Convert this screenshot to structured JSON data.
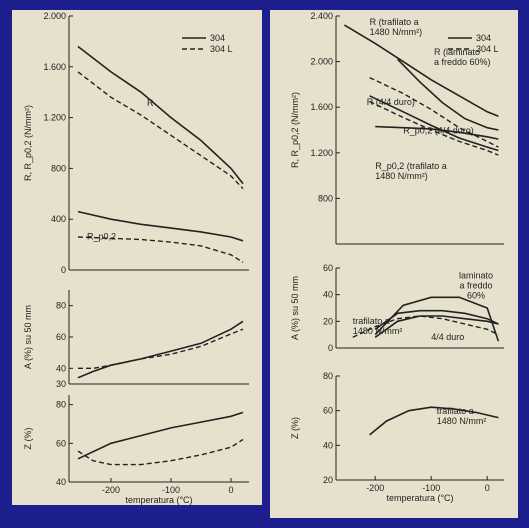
{
  "chart_data": [
    {
      "id": "left-top",
      "type": "line",
      "ylabel": "R, R_p0,2 (N/mm²)",
      "xlim": [
        -270,
        30
      ],
      "ylim": [
        0,
        2000
      ],
      "yticks": [
        0,
        400,
        800,
        1200,
        1600,
        2000
      ],
      "ytick_labels": [
        "0",
        "400",
        "800",
        "1.200",
        "1.600",
        "2.000"
      ],
      "legend": [
        "304",
        "304 L"
      ],
      "annotations": [
        "R",
        "R_p0,2"
      ],
      "series": [
        {
          "name": "304",
          "label": "R",
          "style": "solid",
          "x": [
            -255,
            -200,
            -150,
            -100,
            -50,
            0,
            20
          ],
          "y": [
            1760,
            1560,
            1400,
            1200,
            1020,
            800,
            680
          ]
        },
        {
          "name": "304 L",
          "label": "R",
          "style": "dash",
          "x": [
            -255,
            -200,
            -150,
            -100,
            -50,
            0,
            20
          ],
          "y": [
            1560,
            1360,
            1220,
            1060,
            900,
            740,
            640
          ]
        },
        {
          "name": "304",
          "label": "R_p0,2",
          "style": "solid",
          "x": [
            -255,
            -200,
            -150,
            -100,
            -50,
            0,
            20
          ],
          "y": [
            460,
            400,
            360,
            330,
            300,
            260,
            230
          ]
        },
        {
          "name": "304 L",
          "label": "R_p0,2",
          "style": "dash",
          "x": [
            -255,
            -200,
            -150,
            -100,
            -50,
            0,
            20
          ],
          "y": [
            260,
            250,
            240,
            220,
            190,
            120,
            60
          ]
        }
      ]
    },
    {
      "id": "left-mid",
      "type": "line",
      "ylabel": "A (%) su 50 mm",
      "xlim": [
        -270,
        30
      ],
      "ylim": [
        30,
        90
      ],
      "yticks": [
        30,
        40,
        60,
        80
      ],
      "ytick_labels": [
        "30",
        "40",
        "60",
        "80"
      ],
      "series": [
        {
          "name": "304",
          "style": "solid",
          "x": [
            -255,
            -230,
            -200,
            -150,
            -100,
            -50,
            0,
            20
          ],
          "y": [
            34,
            38,
            42,
            46,
            51,
            56,
            65,
            70
          ]
        },
        {
          "name": "304 L",
          "style": "dash",
          "x": [
            -255,
            -230,
            -200,
            -150,
            -100,
            -50,
            0,
            20
          ],
          "y": [
            40,
            40,
            42,
            46,
            49,
            54,
            62,
            65
          ]
        }
      ]
    },
    {
      "id": "left-bot",
      "type": "line",
      "ylabel": "Z (%)",
      "xlabel": "temperatura (°C)",
      "xlim": [
        -270,
        30
      ],
      "ylim": [
        40,
        85
      ],
      "xticks": [
        -200,
        -100,
        0
      ],
      "xtick_labels": [
        "-200",
        "-100",
        "0"
      ],
      "yticks": [
        40,
        60,
        80
      ],
      "ytick_labels": [
        "40",
        "60",
        "80"
      ],
      "series": [
        {
          "name": "304",
          "style": "solid",
          "x": [
            -255,
            -200,
            -150,
            -100,
            -50,
            0,
            20
          ],
          "y": [
            52,
            60,
            64,
            68,
            71,
            74,
            76
          ]
        },
        {
          "name": "304 L",
          "style": "dash",
          "x": [
            -255,
            -230,
            -200,
            -150,
            -100,
            -50,
            0,
            20
          ],
          "y": [
            56,
            51,
            49,
            49,
            51,
            54,
            58,
            62
          ]
        }
      ]
    },
    {
      "id": "right-top",
      "type": "line",
      "ylabel": "R, R_p0,2 (N/mm²)",
      "xlim": [
        -270,
        30
      ],
      "ylim": [
        400,
        2400
      ],
      "yticks": [
        800,
        1200,
        1600,
        2000,
        2400
      ],
      "ytick_labels": [
        "800",
        "1.200",
        "1.600",
        "2.000",
        "2.400"
      ],
      "legend": [
        "304",
        "304 L"
      ],
      "annotations": [
        "R (trafilato a\n1480 N/mm²)",
        "R (laminato\na freddo 60%)",
        "R (4/4 duro)",
        "R_p0,2 (4/4 duro)",
        "R_p0,2 (trafilato a\n1480 N/mm²)"
      ],
      "series": [
        {
          "name": "304",
          "label": "R (trafilato a 1480 N/mm²)",
          "style": "solid",
          "x": [
            -255,
            -200,
            -150,
            -100,
            -50,
            0,
            20
          ],
          "y": [
            2320,
            2160,
            2000,
            1840,
            1700,
            1560,
            1520
          ]
        },
        {
          "name": "304",
          "label": "R (laminato a freddo 60%)",
          "style": "solid",
          "x": [
            -160,
            -120,
            -80,
            -40,
            0,
            20
          ],
          "y": [
            2020,
            1820,
            1640,
            1500,
            1420,
            1400
          ]
        },
        {
          "name": "304 L",
          "label": "R (4/4 duro)",
          "style": "dash",
          "x": [
            -210,
            -150,
            -100,
            -50,
            0,
            20
          ],
          "y": [
            1860,
            1720,
            1580,
            1420,
            1300,
            1250
          ]
        },
        {
          "name": "304",
          "label": "R_p0,2 (4/4 duro)",
          "style": "solid",
          "x": [
            -210,
            -150,
            -100,
            -50,
            0,
            20
          ],
          "y": [
            1700,
            1560,
            1440,
            1330,
            1250,
            1220
          ]
        },
        {
          "name": "304 L",
          "label": "R_p0,2 (4/4 duro)",
          "style": "dash",
          "x": [
            -210,
            -150,
            -100,
            -50,
            0,
            20
          ],
          "y": [
            1650,
            1510,
            1400,
            1300,
            1220,
            1180
          ]
        },
        {
          "name": "304",
          "label": "R_p0,2 (trafilato a 1480 N/mm²)",
          "style": "solid",
          "x": [
            -200,
            -150,
            -100,
            -50,
            0,
            20
          ],
          "y": [
            1430,
            1420,
            1410,
            1380,
            1340,
            1320
          ]
        }
      ]
    },
    {
      "id": "right-mid",
      "type": "line",
      "ylabel": "A (%) su 50 mm",
      "xlim": [
        -270,
        30
      ],
      "ylim": [
        0,
        60
      ],
      "yticks": [
        0,
        20,
        40,
        60
      ],
      "ytick_labels": [
        "0",
        "20",
        "40",
        "60"
      ],
      "annotations": [
        "laminato\na freddo\n60%",
        "trafilato a\n1480 N/mm²",
        "4/4 duro"
      ],
      "series": [
        {
          "name": "304",
          "label": "laminato a freddo 60%",
          "style": "solid",
          "x": [
            -200,
            -150,
            -100,
            -50,
            0,
            20
          ],
          "y": [
            10,
            32,
            38,
            38,
            30,
            5
          ]
        },
        {
          "name": "304",
          "label": "trafilato a 1480 N/mm²",
          "style": "solid",
          "x": [
            -200,
            -160,
            -120,
            -80,
            -40,
            0,
            20
          ],
          "y": [
            14,
            26,
            28,
            28,
            26,
            22,
            18
          ]
        },
        {
          "name": "304 L",
          "label": "4/4 duro",
          "style": "dash",
          "x": [
            -240,
            -200,
            -160,
            -120,
            -80,
            -40,
            0,
            20
          ],
          "y": [
            8,
            16,
            22,
            24,
            22,
            18,
            14,
            10
          ]
        },
        {
          "name": "304",
          "label": "4/4 duro",
          "style": "solid",
          "x": [
            -200,
            -160,
            -120,
            -80,
            -40,
            0,
            20
          ],
          "y": [
            8,
            20,
            24,
            24,
            22,
            20,
            18
          ]
        }
      ]
    },
    {
      "id": "right-bot",
      "type": "line",
      "ylabel": "Z (%)",
      "xlabel": "temperatura (°C)",
      "xlim": [
        -270,
        30
      ],
      "ylim": [
        20,
        80
      ],
      "xticks": [
        -200,
        -100,
        0
      ],
      "xtick_labels": [
        "-200",
        "-100",
        "0"
      ],
      "yticks": [
        20,
        40,
        60,
        80
      ],
      "ytick_labels": [
        "20",
        "40",
        "60",
        "80"
      ],
      "annotations": [
        "trafilato a\n1480 N/mm²"
      ],
      "series": [
        {
          "name": "304",
          "label": "trafilato a 1480 N/mm²",
          "style": "solid",
          "x": [
            -210,
            -180,
            -140,
            -100,
            -60,
            -20,
            20
          ],
          "y": [
            46,
            54,
            60,
            62,
            61,
            59,
            56
          ]
        }
      ]
    }
  ]
}
